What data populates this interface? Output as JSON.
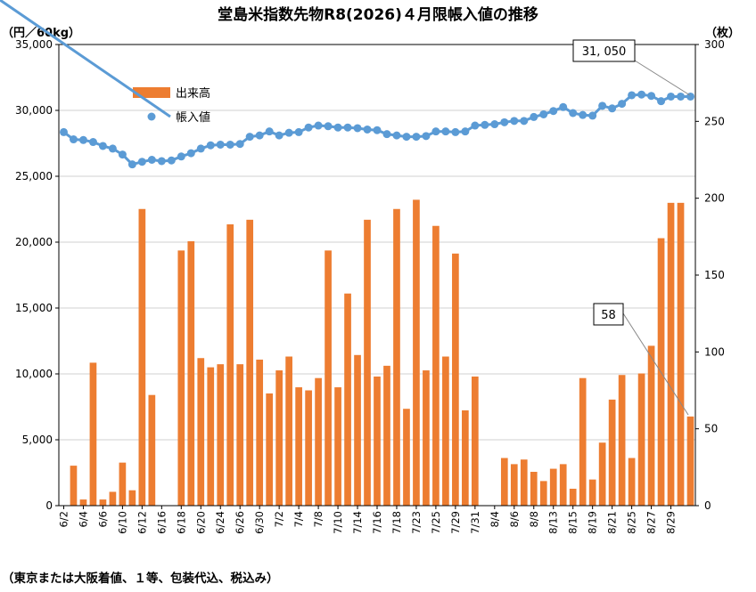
{
  "chart_data": {
    "type": "bar+line",
    "title": "堂島米指数先物R8(2026)４月限帳入値の推移",
    "left_axis_unit": "（円／60kg）",
    "right_axis_unit": "（枚）",
    "left_ylim": [
      0,
      35000
    ],
    "right_ylim": [
      0,
      300
    ],
    "left_ticks": [
      "0",
      "5,000",
      "10,000",
      "15,000",
      "20,000",
      "25,000",
      "30,000",
      "35,000"
    ],
    "right_ticks": [
      "0",
      "50",
      "100",
      "150",
      "200",
      "250",
      "300"
    ],
    "grid": true,
    "legend_placement": "upper-left",
    "x_tick_labels": [
      "6/2",
      "6/4",
      "6/6",
      "6/10",
      "6/12",
      "6/16",
      "6/18",
      "6/20",
      "6/24",
      "6/26",
      "6/30",
      "7/2",
      "7/4",
      "7/8",
      "7/10",
      "7/14",
      "7/16",
      "7/18",
      "7/23",
      "7/25",
      "7/29",
      "7/31",
      "8/4",
      "8/6",
      "8/8",
      "8/13",
      "8/15",
      "8/19",
      "8/21",
      "8/25",
      "8/27",
      "8/29"
    ],
    "series": [
      {
        "name": "出来高",
        "kind": "bar",
        "axis": "right",
        "color": "#ED7D31",
        "values": [
          0,
          26,
          4,
          93,
          4,
          9,
          28,
          10,
          193,
          72,
          0,
          0,
          166,
          172,
          96,
          90,
          92,
          183,
          92,
          186,
          95,
          73,
          88,
          97,
          77,
          75,
          83,
          166,
          77,
          138,
          98,
          186,
          84,
          91,
          193,
          63,
          199,
          88,
          182,
          97,
          164,
          62,
          84,
          0,
          0,
          31,
          27,
          30,
          22,
          16,
          24,
          27,
          11,
          83,
          17,
          41,
          69,
          85,
          31,
          86,
          104,
          174,
          197,
          197,
          58
        ]
      },
      {
        "name": "帳入値",
        "kind": "line",
        "axis": "left",
        "color": "#5B9BD5",
        "values": [
          28350,
          27800,
          27750,
          27600,
          27300,
          27100,
          26650,
          25900,
          26100,
          26250,
          26150,
          26200,
          26500,
          26750,
          27100,
          27350,
          27400,
          27400,
          27450,
          28000,
          28100,
          28400,
          28100,
          28300,
          28350,
          28700,
          28850,
          28800,
          28700,
          28700,
          28650,
          28550,
          28500,
          28200,
          28100,
          28000,
          28000,
          28050,
          28400,
          28400,
          28350,
          28400,
          28850,
          28900,
          28950,
          29100,
          29200,
          29200,
          29500,
          29700,
          29950,
          30250,
          29800,
          29650,
          29600,
          30350,
          30150,
          30500,
          31150,
          31200,
          31100,
          30700,
          31050,
          31050,
          31050
        ]
      }
    ],
    "annotations": [
      "31, 050",
      "58"
    ],
    "note": "（東京または大阪着値、１等、包装代込、税込み）"
  }
}
